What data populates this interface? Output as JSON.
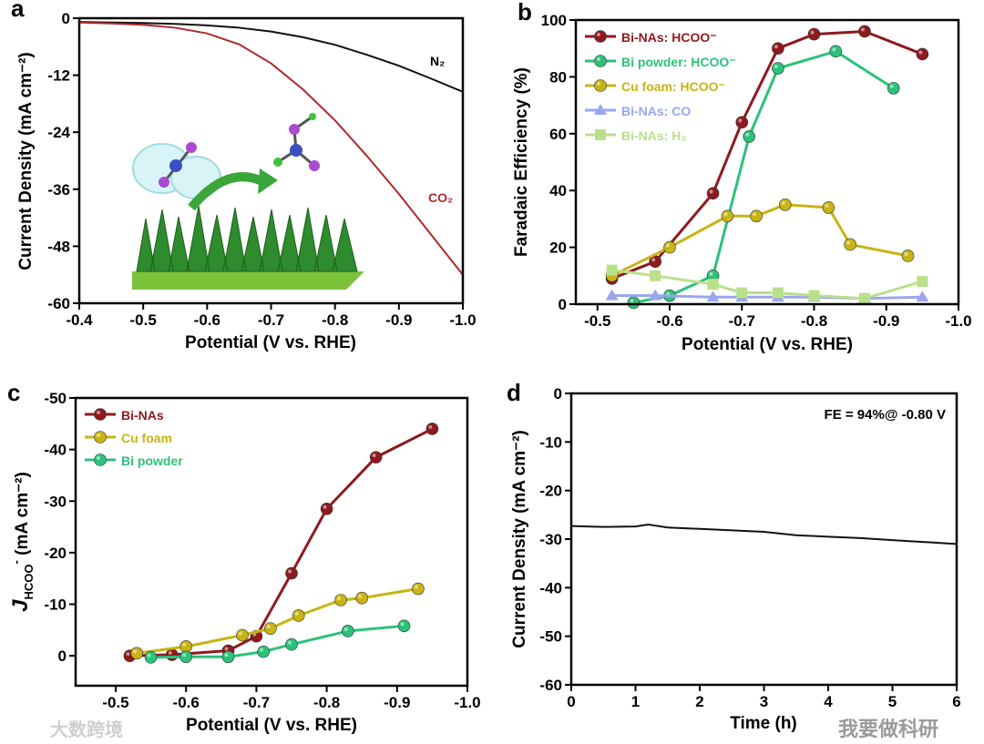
{
  "watermarks": {
    "bottom_left": "大数跨境",
    "bottom_right": "我要做科研"
  },
  "chart_data": [
    {
      "panel": "a",
      "type": "line",
      "xlabel": "Potential (V vs. RHE)",
      "ylabel": "Current Density (mA cm⁻²)",
      "xlim": [
        -0.4,
        -1.0
      ],
      "ylim": [
        0,
        -60
      ],
      "xticks": [
        -0.4,
        -0.5,
        -0.6,
        -0.7,
        -0.8,
        -0.9,
        -1.0
      ],
      "xtick_labels": [
        "-0.4",
        "-0.5",
        "-0.6",
        "-0.7",
        "-0.8",
        "-0.9",
        "-1.0"
      ],
      "yticks": [
        0,
        -12,
        -24,
        -36,
        -48,
        -60
      ],
      "ytick_labels": [
        "0",
        "-12",
        "-24",
        "-36",
        "-48",
        "-60"
      ],
      "series": [
        {
          "name": "N₂",
          "color": "#111111",
          "x": [
            -0.4,
            -0.45,
            -0.5,
            -0.55,
            -0.6,
            -0.65,
            -0.7,
            -0.75,
            -0.8,
            -0.85,
            -0.9,
            -0.95,
            -1.0
          ],
          "y": [
            -0.8,
            -0.9,
            -1.0,
            -1.2,
            -1.5,
            -2.0,
            -2.8,
            -4.0,
            -5.6,
            -7.7,
            -10.0,
            -12.7,
            -15.5
          ]
        },
        {
          "name": "CO₂",
          "color": "#b0282c",
          "x": [
            -0.4,
            -0.45,
            -0.5,
            -0.55,
            -0.6,
            -0.65,
            -0.7,
            -0.75,
            -0.8,
            -0.85,
            -0.9,
            -0.95,
            -1.0
          ],
          "y": [
            -0.9,
            -1.1,
            -1.4,
            -2.0,
            -3.2,
            -5.5,
            -9.5,
            -15.0,
            -21.5,
            -29.0,
            -37.0,
            -45.5,
            -54.0
          ]
        }
      ]
    },
    {
      "panel": "b",
      "type": "line",
      "xlabel": "Potential (V vs. RHE)",
      "ylabel": "Faradaic Efficiency (%)",
      "xlim": [
        -0.47,
        -1.0
      ],
      "ylim": [
        100,
        0
      ],
      "xticks": [
        -0.5,
        -0.6,
        -0.7,
        -0.8,
        -0.9,
        -1.0
      ],
      "xtick_labels": [
        "-0.5",
        "-0.6",
        "-0.7",
        "-0.8",
        "-0.9",
        "-1.0"
      ],
      "yticks": [
        0,
        20,
        40,
        60,
        80,
        100
      ],
      "ytick_labels": [
        "0",
        "20",
        "40",
        "60",
        "80",
        "100"
      ],
      "legend": "top-left",
      "series": [
        {
          "name": "Bi-NAs: HCOO⁻",
          "color": "#8e1a1f",
          "marker": "circle",
          "x": [
            -0.52,
            -0.58,
            -0.66,
            -0.7,
            -0.75,
            -0.8,
            -0.87,
            -0.95
          ],
          "y": [
            9,
            15,
            39,
            64,
            90,
            95,
            96,
            88
          ]
        },
        {
          "name": "Bi powder: HCOO⁻",
          "color": "#2cc27a",
          "marker": "circle",
          "x": [
            -0.55,
            -0.6,
            -0.66,
            -0.71,
            -0.75,
            -0.83,
            -0.91
          ],
          "y": [
            0.5,
            3,
            10,
            59,
            83,
            89,
            76
          ]
        },
        {
          "name": "Cu foam: HCOO⁻",
          "color": "#c8b414",
          "marker": "circle",
          "x": [
            -0.52,
            -0.6,
            -0.68,
            -0.72,
            -0.76,
            -0.82,
            -0.85,
            -0.93
          ],
          "y": [
            10,
            20,
            31,
            31,
            35,
            34,
            21,
            17
          ]
        },
        {
          "name": "Bi-NAs: CO",
          "color": "#9aa6ee",
          "marker": "triangle",
          "x": [
            -0.52,
            -0.58,
            -0.66,
            -0.7,
            -0.75,
            -0.8,
            -0.87,
            -0.95
          ],
          "y": [
            3,
            3,
            2.5,
            2.5,
            2.5,
            2.5,
            2,
            2.5
          ]
        },
        {
          "name": "Bi-NAs: H₂",
          "color": "#b9e08a",
          "marker": "square",
          "x": [
            -0.52,
            -0.58,
            -0.66,
            -0.7,
            -0.75,
            -0.8,
            -0.87,
            -0.95
          ],
          "y": [
            12,
            10,
            7,
            4,
            4,
            3,
            2,
            8
          ]
        }
      ]
    },
    {
      "panel": "c",
      "type": "line",
      "xlabel": "Potential (V vs. RHE)",
      "ylabel_parts": [
        "J",
        "HCOO",
        "-",
        " (mA cm⁻²)"
      ],
      "xlim": [
        -0.443,
        -1.0
      ],
      "ylim": [
        -50,
        5.8
      ],
      "xticks": [
        -0.5,
        -0.6,
        -0.7,
        -0.8,
        -0.9,
        -1.0
      ],
      "xtick_labels": [
        "-0.5",
        "-0.6",
        "-0.7",
        "-0.8",
        "-0.9",
        "-1.0"
      ],
      "yticks": [
        0,
        -10,
        -20,
        -30,
        -40,
        -50
      ],
      "ytick_labels": [
        "0",
        "-10",
        "-20",
        "-30",
        "-40",
        "-50"
      ],
      "legend": "top-left",
      "series": [
        {
          "name": "Bi-NAs",
          "color": "#8e1a1f",
          "marker": "circle",
          "x": [
            -0.52,
            -0.58,
            -0.66,
            -0.7,
            -0.75,
            -0.8,
            -0.87,
            -0.95
          ],
          "y": [
            0,
            -0.2,
            -1,
            -3.8,
            -16,
            -28.5,
            -38.5,
            -44
          ]
        },
        {
          "name": "Cu foam",
          "color": "#c8b414",
          "marker": "circle",
          "x": [
            -0.53,
            -0.6,
            -0.68,
            -0.72,
            -0.76,
            -0.82,
            -0.85,
            -0.93
          ],
          "y": [
            -0.5,
            -1.8,
            -4,
            -5.3,
            -7.8,
            -10.8,
            -11.2,
            -13
          ]
        },
        {
          "name": "Bi powder",
          "color": "#2cc27a",
          "marker": "circle",
          "x": [
            -0.55,
            -0.6,
            -0.66,
            -0.71,
            -0.75,
            -0.83,
            -0.91
          ],
          "y": [
            0.3,
            0.2,
            0.2,
            -0.8,
            -2.2,
            -4.8,
            -5.8
          ]
        }
      ]
    },
    {
      "panel": "d",
      "type": "line",
      "xlabel": "Time (h)",
      "ylabel": "Current Density (mA cm⁻²)",
      "xlim": [
        0,
        6
      ],
      "ylim": [
        0,
        -60
      ],
      "xticks": [
        0,
        1,
        2,
        3,
        4,
        5,
        6
      ],
      "xtick_labels": [
        "0",
        "1",
        "2",
        "3",
        "4",
        "5",
        "6"
      ],
      "yticks": [
        0,
        -10,
        -20,
        -30,
        -40,
        -50,
        -60
      ],
      "ytick_labels": [
        "0",
        "-10",
        "-20",
        "-30",
        "-40",
        "-50",
        "-60"
      ],
      "annotation": "FE = 94%@ -0.80 V",
      "series": [
        {
          "name": "Bi-NAs",
          "color": "#111111",
          "x": [
            0,
            0.5,
            1,
            1.2,
            1.5,
            2,
            2.5,
            3,
            3.5,
            4,
            4.5,
            5,
            5.5,
            6
          ],
          "y": [
            -27.3,
            -27.5,
            -27.4,
            -27.0,
            -27.6,
            -27.9,
            -28.2,
            -28.5,
            -29.2,
            -29.5,
            -29.8,
            -30.2,
            -30.6,
            -31.0
          ]
        }
      ]
    }
  ]
}
